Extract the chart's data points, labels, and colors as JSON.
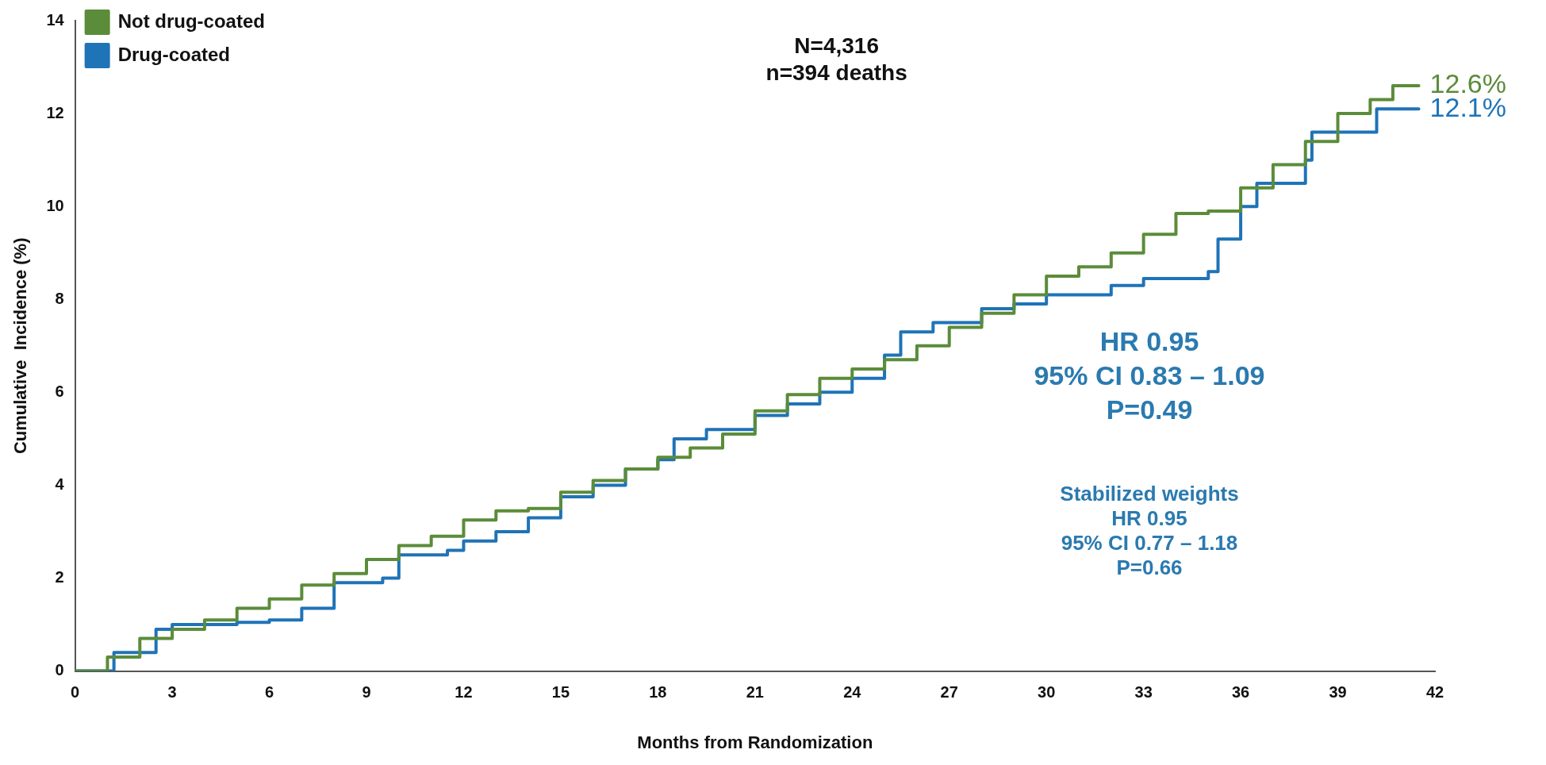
{
  "chart_data": {
    "type": "step",
    "xlabel": "Months from Randomization",
    "ylabel": "Cumulative  Incidence (%)",
    "xlim": [
      0,
      42
    ],
    "xticks": [
      0,
      3,
      6,
      9,
      12,
      15,
      18,
      21,
      24,
      27,
      30,
      33,
      36,
      39,
      42
    ],
    "ylim": [
      0,
      14
    ],
    "yticks": [
      0,
      2,
      4,
      6,
      8,
      10,
      12,
      14
    ],
    "grid": false,
    "legend": "top left",
    "marker": "none",
    "line_style": "solid",
    "series": [
      {
        "name": "Not drug-coated",
        "color": "#5b8c3a",
        "x": [
          0,
          1,
          2,
          3,
          4,
          5,
          6,
          7,
          8,
          9,
          10,
          11,
          12,
          13,
          14,
          15,
          16,
          17,
          18,
          19,
          20,
          21,
          22,
          23,
          24,
          25,
          26,
          27,
          28,
          29,
          30,
          31,
          32,
          33,
          34,
          35,
          36,
          37,
          38,
          39,
          40,
          40.7,
          41.5
        ],
        "values": [
          0,
          0.3,
          0.7,
          0.9,
          1.1,
          1.35,
          1.55,
          1.85,
          2.1,
          2.4,
          2.7,
          2.9,
          3.25,
          3.45,
          3.5,
          3.85,
          4.1,
          4.35,
          4.6,
          4.8,
          5.1,
          5.6,
          5.95,
          6.3,
          6.5,
          6.7,
          7.0,
          7.4,
          7.7,
          8.1,
          8.5,
          8.7,
          9.0,
          9.4,
          9.85,
          9.9,
          10.4,
          10.9,
          11.4,
          12.0,
          12.3,
          12.6,
          12.6
        ]
      },
      {
        "name": "Drug-coated",
        "color": "#1f73b7",
        "x": [
          0,
          1.2,
          2.5,
          3,
          5,
          6,
          7,
          8,
          9.5,
          10,
          11.5,
          12,
          13,
          14,
          15,
          16,
          17,
          18,
          18.5,
          19.5,
          21,
          22,
          23,
          24,
          25,
          25.5,
          26.5,
          28,
          29,
          30,
          32,
          33,
          34,
          35,
          35.3,
          36,
          36.5,
          37.5,
          38,
          38.2,
          40,
          40.2,
          41.5
        ],
        "values": [
          0,
          0.4,
          0.9,
          1.0,
          1.05,
          1.1,
          1.35,
          1.9,
          2.0,
          2.5,
          2.6,
          2.8,
          3.0,
          3.3,
          3.75,
          4.0,
          4.35,
          4.55,
          5.0,
          5.2,
          5.5,
          5.75,
          6.0,
          6.3,
          6.8,
          7.3,
          7.5,
          7.8,
          7.9,
          8.1,
          8.3,
          8.45,
          8.45,
          8.6,
          9.3,
          10.0,
          10.5,
          10.5,
          11.0,
          11.6,
          11.6,
          12.1,
          12.1
        ]
      }
    ],
    "annotations": [
      {
        "text": "12.6%",
        "x": 41.5,
        "y": 12.6
      },
      {
        "text": "12.1%",
        "x": 41.5,
        "y": 12.1
      },
      "N=4,316\nn=394 deaths",
      "HR 0.95\n95% CI 0.83 – 1.09\nP=0.49",
      "Stabilized weights\nHR 0.95\n95% CI 0.77 – 1.18\nP=0.66"
    ]
  }
}
